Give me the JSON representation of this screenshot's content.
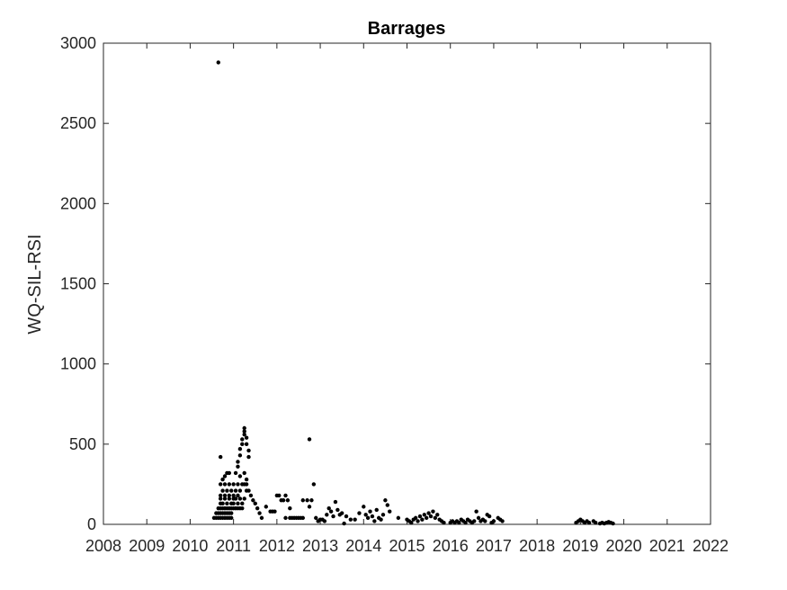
{
  "chart_data": {
    "type": "scatter",
    "title": "Barrages",
    "xlabel": "",
    "ylabel": "WQ-SIL-RSI",
    "xlim": [
      2008,
      2022
    ],
    "ylim": [
      0,
      3000
    ],
    "x_ticks": [
      "2008",
      "2009",
      "2010",
      "2011",
      "2012",
      "2013",
      "2014",
      "2015",
      "2016",
      "2017",
      "2018",
      "2019",
      "2020",
      "2021",
      "2022"
    ],
    "y_ticks": [
      "0",
      "500",
      "1000",
      "1500",
      "2000",
      "2500",
      "3000"
    ],
    "grid": false,
    "marker_color": "#000000",
    "series": [
      {
        "points": [
          [
            2010.55,
            40
          ],
          [
            2010.6,
            40
          ],
          [
            2010.65,
            40
          ],
          [
            2010.7,
            40
          ],
          [
            2010.75,
            40
          ],
          [
            2010.8,
            40
          ],
          [
            2010.85,
            40
          ],
          [
            2010.9,
            40
          ],
          [
            2010.95,
            40
          ],
          [
            2010.6,
            70
          ],
          [
            2010.65,
            70
          ],
          [
            2010.7,
            70
          ],
          [
            2010.75,
            70
          ],
          [
            2010.8,
            70
          ],
          [
            2010.85,
            70
          ],
          [
            2010.9,
            70
          ],
          [
            2010.95,
            70
          ],
          [
            2010.65,
            100
          ],
          [
            2010.7,
            100
          ],
          [
            2010.75,
            100
          ],
          [
            2010.8,
            100
          ],
          [
            2010.85,
            100
          ],
          [
            2010.9,
            100
          ],
          [
            2010.95,
            100
          ],
          [
            2011.0,
            100
          ],
          [
            2011.05,
            100
          ],
          [
            2011.1,
            100
          ],
          [
            2011.15,
            100
          ],
          [
            2011.2,
            100
          ],
          [
            2010.7,
            130
          ],
          [
            2010.75,
            130
          ],
          [
            2010.85,
            130
          ],
          [
            2010.95,
            130
          ],
          [
            2011.0,
            130
          ],
          [
            2011.1,
            130
          ],
          [
            2011.2,
            130
          ],
          [
            2010.7,
            160
          ],
          [
            2010.8,
            160
          ],
          [
            2010.9,
            160
          ],
          [
            2011.0,
            160
          ],
          [
            2011.05,
            160
          ],
          [
            2011.15,
            160
          ],
          [
            2011.25,
            160
          ],
          [
            2010.7,
            180
          ],
          [
            2010.8,
            180
          ],
          [
            2010.9,
            180
          ],
          [
            2011.0,
            180
          ],
          [
            2011.1,
            180
          ],
          [
            2010.75,
            210
          ],
          [
            2010.85,
            210
          ],
          [
            2010.95,
            210
          ],
          [
            2011.05,
            210
          ],
          [
            2011.15,
            210
          ],
          [
            2011.3,
            210
          ],
          [
            2011.35,
            210
          ],
          [
            2010.7,
            250
          ],
          [
            2010.8,
            250
          ],
          [
            2010.9,
            250
          ],
          [
            2011.0,
            250
          ],
          [
            2011.1,
            250
          ],
          [
            2011.2,
            250
          ],
          [
            2011.25,
            250
          ],
          [
            2011.3,
            250
          ],
          [
            2010.75,
            280
          ],
          [
            2010.8,
            300
          ],
          [
            2010.85,
            320
          ],
          [
            2010.9,
            320
          ],
          [
            2011.05,
            320
          ],
          [
            2011.15,
            300
          ],
          [
            2011.25,
            320
          ],
          [
            2011.3,
            280
          ],
          [
            2011.1,
            360
          ],
          [
            2011.1,
            390
          ],
          [
            2011.15,
            430
          ],
          [
            2011.15,
            470
          ],
          [
            2011.2,
            500
          ],
          [
            2011.2,
            530
          ],
          [
            2011.25,
            560
          ],
          [
            2011.25,
            580
          ],
          [
            2011.25,
            600
          ],
          [
            2011.3,
            540
          ],
          [
            2011.3,
            500
          ],
          [
            2011.35,
            460
          ],
          [
            2011.35,
            420
          ],
          [
            2010.7,
            420
          ],
          [
            2010.65,
            2880
          ],
          [
            2011.4,
            180
          ],
          [
            2011.45,
            150
          ],
          [
            2011.5,
            130
          ],
          [
            2011.55,
            100
          ],
          [
            2011.6,
            70
          ],
          [
            2011.65,
            40
          ],
          [
            2011.75,
            110
          ],
          [
            2011.85,
            80
          ],
          [
            2011.9,
            80
          ],
          [
            2011.95,
            80
          ],
          [
            2012.0,
            180
          ],
          [
            2012.05,
            180
          ],
          [
            2012.1,
            150
          ],
          [
            2012.15,
            150
          ],
          [
            2012.2,
            180
          ],
          [
            2012.25,
            150
          ],
          [
            2012.3,
            100
          ],
          [
            2012.2,
            40
          ],
          [
            2012.3,
            40
          ],
          [
            2012.35,
            40
          ],
          [
            2012.4,
            40
          ],
          [
            2012.45,
            40
          ],
          [
            2012.5,
            40
          ],
          [
            2012.55,
            40
          ],
          [
            2012.6,
            40
          ],
          [
            2012.6,
            150
          ],
          [
            2012.7,
            150
          ],
          [
            2012.75,
            110
          ],
          [
            2012.8,
            150
          ],
          [
            2012.75,
            530
          ],
          [
            2012.85,
            250
          ],
          [
            2012.9,
            40
          ],
          [
            2012.95,
            20
          ],
          [
            2013.0,
            30
          ],
          [
            2013.05,
            30
          ],
          [
            2013.1,
            20
          ],
          [
            2013.15,
            60
          ],
          [
            2013.2,
            100
          ],
          [
            2013.25,
            80
          ],
          [
            2013.3,
            50
          ],
          [
            2013.35,
            140
          ],
          [
            2013.4,
            90
          ],
          [
            2013.45,
            60
          ],
          [
            2013.5,
            70
          ],
          [
            2013.55,
            5
          ],
          [
            2013.6,
            50
          ],
          [
            2013.7,
            30
          ],
          [
            2013.8,
            30
          ],
          [
            2013.9,
            70
          ],
          [
            2014.0,
            110
          ],
          [
            2014.05,
            60
          ],
          [
            2014.1,
            40
          ],
          [
            2014.15,
            80
          ],
          [
            2014.2,
            50
          ],
          [
            2014.25,
            20
          ],
          [
            2014.3,
            90
          ],
          [
            2014.35,
            40
          ],
          [
            2014.4,
            30
          ],
          [
            2014.45,
            60
          ],
          [
            2014.5,
            150
          ],
          [
            2014.55,
            120
          ],
          [
            2014.6,
            80
          ],
          [
            2014.8,
            40
          ],
          [
            2015.0,
            30
          ],
          [
            2015.05,
            20
          ],
          [
            2015.1,
            10
          ],
          [
            2015.15,
            30
          ],
          [
            2015.2,
            40
          ],
          [
            2015.25,
            20
          ],
          [
            2015.3,
            50
          ],
          [
            2015.35,
            30
          ],
          [
            2015.4,
            60
          ],
          [
            2015.45,
            40
          ],
          [
            2015.5,
            70
          ],
          [
            2015.55,
            50
          ],
          [
            2015.6,
            80
          ],
          [
            2015.65,
            40
          ],
          [
            2015.7,
            60
          ],
          [
            2015.75,
            30
          ],
          [
            2015.8,
            20
          ],
          [
            2015.85,
            10
          ],
          [
            2016.0,
            10
          ],
          [
            2016.05,
            20
          ],
          [
            2016.1,
            10
          ],
          [
            2016.15,
            20
          ],
          [
            2016.2,
            10
          ],
          [
            2016.25,
            30
          ],
          [
            2016.3,
            20
          ],
          [
            2016.35,
            10
          ],
          [
            2016.4,
            30
          ],
          [
            2016.45,
            20
          ],
          [
            2016.5,
            10
          ],
          [
            2016.55,
            20
          ],
          [
            2016.6,
            80
          ],
          [
            2016.65,
            40
          ],
          [
            2016.7,
            20
          ],
          [
            2016.75,
            30
          ],
          [
            2016.8,
            20
          ],
          [
            2016.85,
            60
          ],
          [
            2016.9,
            50
          ],
          [
            2016.95,
            10
          ],
          [
            2017.0,
            20
          ],
          [
            2017.1,
            40
          ],
          [
            2017.15,
            30
          ],
          [
            2017.2,
            20
          ],
          [
            2018.9,
            10
          ],
          [
            2018.95,
            20
          ],
          [
            2019.0,
            30
          ],
          [
            2019.05,
            20
          ],
          [
            2019.1,
            10
          ],
          [
            2019.15,
            20
          ],
          [
            2019.2,
            10
          ],
          [
            2019.3,
            20
          ],
          [
            2019.35,
            10
          ],
          [
            2019.45,
            5
          ],
          [
            2019.5,
            10
          ],
          [
            2019.55,
            5
          ],
          [
            2019.6,
            10
          ],
          [
            2019.65,
            15
          ],
          [
            2019.7,
            10
          ],
          [
            2019.75,
            5
          ]
        ]
      }
    ]
  }
}
